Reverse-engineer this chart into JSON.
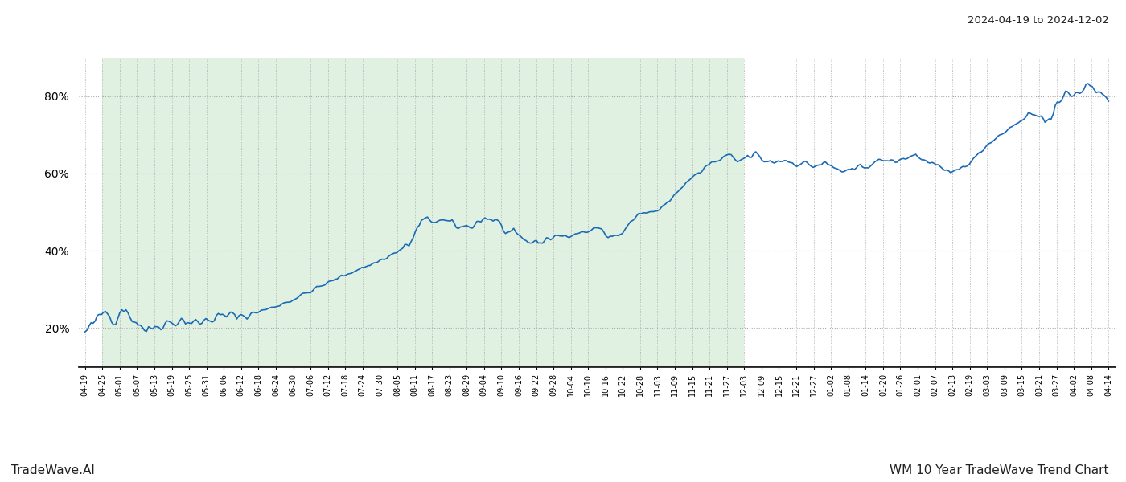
{
  "title_right": "2024-04-19 to 2024-12-02",
  "footer_left": "TradeWave.AI",
  "footer_right": "WM 10 Year TradeWave Trend Chart",
  "y_ticks": [
    20,
    40,
    60,
    80
  ],
  "y_min": 10,
  "y_max": 90,
  "line_color": "#1a6ab5",
  "line_width": 1.2,
  "shade_color": "#c8e6c9",
  "shade_alpha": 0.55,
  "grid_color": "#aaaaaa",
  "grid_style": ":",
  "background_color": "#ffffff",
  "x_labels": [
    "04-19",
    "04-25",
    "05-01",
    "05-07",
    "05-13",
    "05-19",
    "05-25",
    "05-31",
    "06-06",
    "06-12",
    "06-18",
    "06-24",
    "06-30",
    "07-06",
    "07-12",
    "07-18",
    "07-24",
    "07-30",
    "08-05",
    "08-11",
    "08-17",
    "08-23",
    "08-29",
    "09-04",
    "09-10",
    "09-16",
    "09-22",
    "09-28",
    "10-04",
    "10-10",
    "10-16",
    "10-22",
    "10-28",
    "11-03",
    "11-09",
    "11-15",
    "11-21",
    "11-27",
    "12-03",
    "12-09",
    "12-15",
    "12-21",
    "12-27",
    "01-02",
    "01-08",
    "01-14",
    "01-20",
    "01-26",
    "02-01",
    "02-07",
    "02-13",
    "02-19",
    "03-03",
    "03-09",
    "03-15",
    "03-21",
    "03-27",
    "04-02",
    "04-08",
    "04-14"
  ],
  "shade_label_start": "04-25",
  "shade_label_end": "12-03"
}
